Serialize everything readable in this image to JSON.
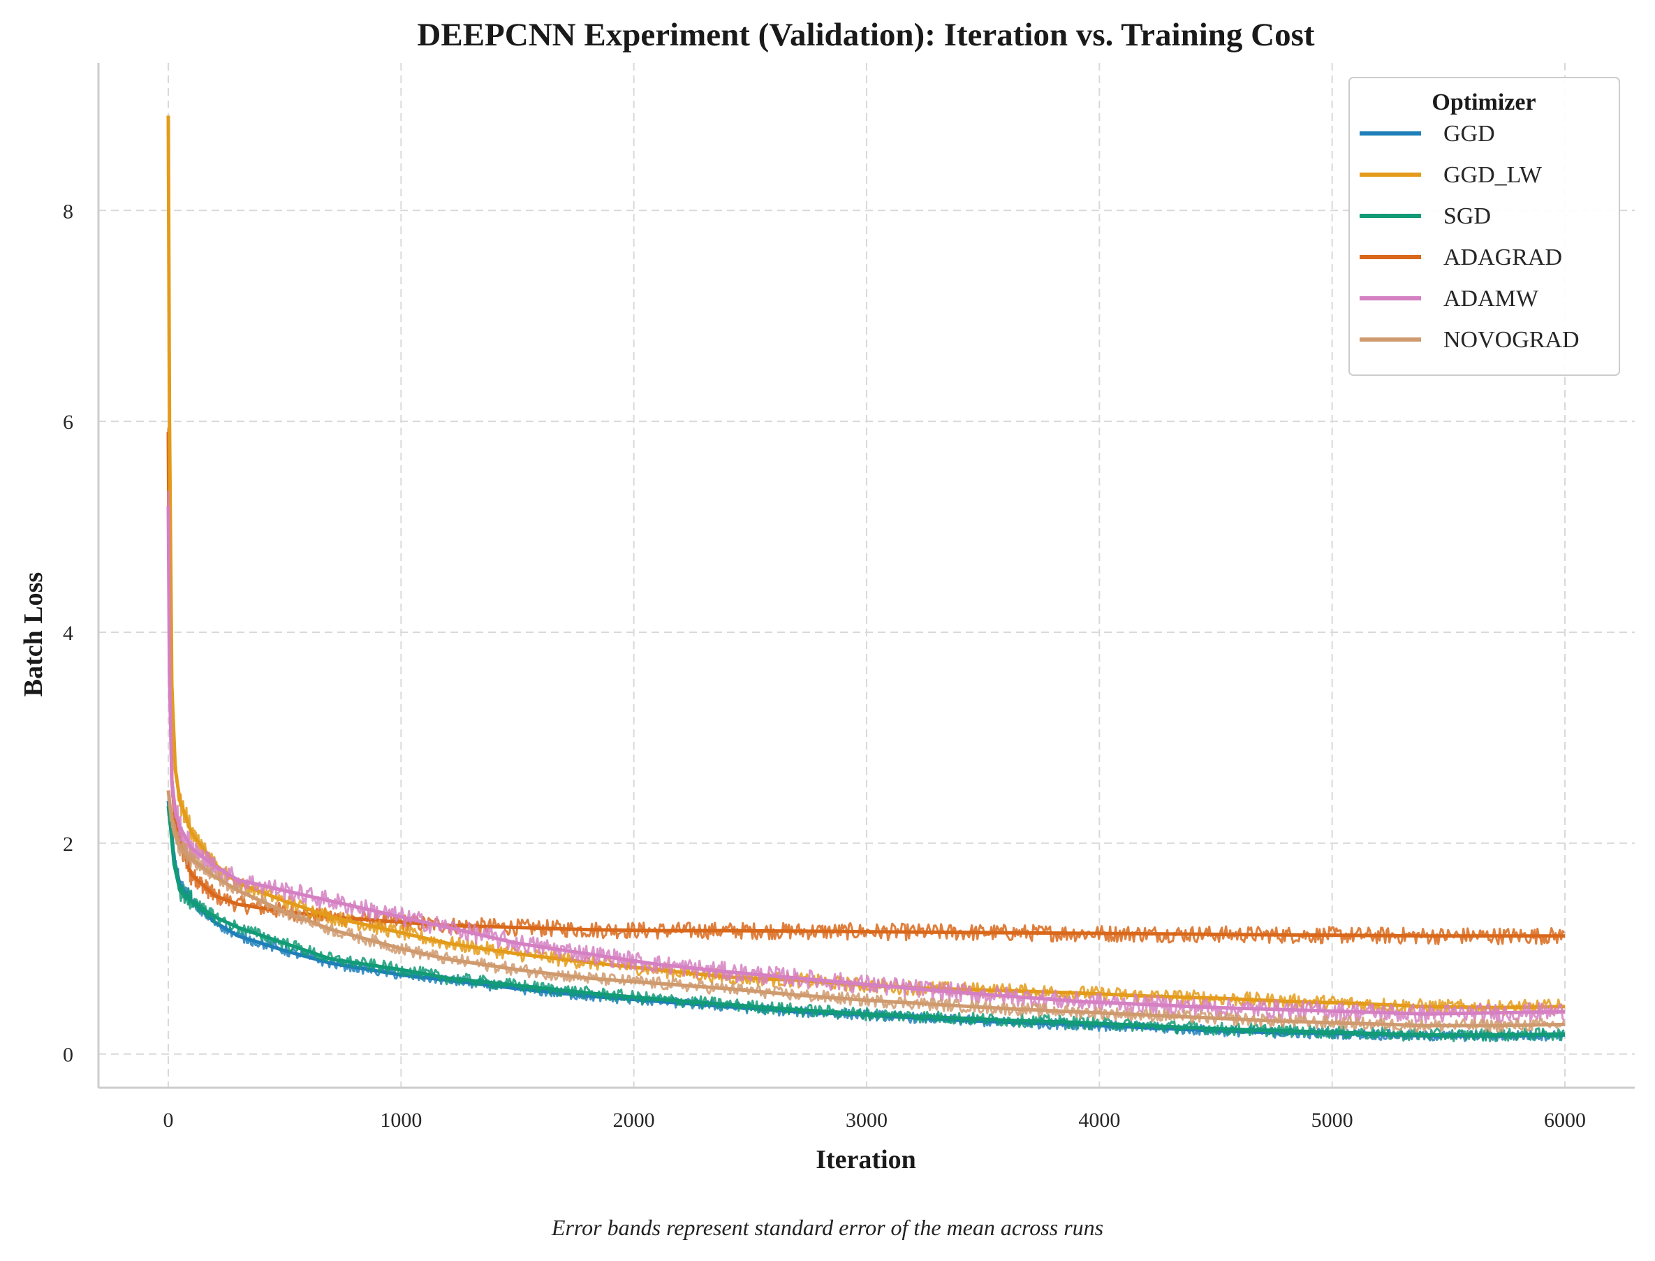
{
  "chart_data": {
    "type": "line",
    "title": "DEEPCNN Experiment (Validation): Iteration vs. Training Cost",
    "xlabel": "Iteration",
    "ylabel": "Batch Loss",
    "xlim": [
      -300,
      6300
    ],
    "ylim": [
      -0.32,
      9.4
    ],
    "xticks": [
      0,
      1000,
      2000,
      3000,
      4000,
      5000,
      6000
    ],
    "yticks": [
      0,
      2,
      4,
      6,
      8
    ],
    "grid": true,
    "legend": {
      "title": "Optimizer",
      "placement": "top-right"
    },
    "caption": "Error bands represent standard error of the mean across runs",
    "series": [
      {
        "name": "GGD",
        "color": "#1f7fb8",
        "x": [
          0,
          10,
          25,
          50,
          100,
          200,
          300,
          500,
          700,
          1000,
          1200,
          1500,
          1800,
          2100,
          2400,
          2700,
          3000,
          3300,
          3600,
          3900,
          4200,
          4500,
          4800,
          5100,
          5400,
          5700,
          6000
        ],
        "y": [
          2.4,
          2.2,
          1.85,
          1.6,
          1.45,
          1.25,
          1.12,
          0.98,
          0.86,
          0.75,
          0.7,
          0.62,
          0.55,
          0.5,
          0.45,
          0.4,
          0.37,
          0.33,
          0.3,
          0.28,
          0.25,
          0.22,
          0.2,
          0.19,
          0.17,
          0.17,
          0.18
        ],
        "noise": 0.05
      },
      {
        "name": "GGD_LW",
        "color": "#e49b1a",
        "x": [
          0,
          5,
          15,
          30,
          50,
          100,
          200,
          300,
          500,
          700,
          1000,
          1200,
          1500,
          1800,
          2100,
          2400,
          2700,
          3000,
          3300,
          3600,
          3900,
          4200,
          4500,
          4800,
          5100,
          5400,
          5700,
          6000
        ],
        "y": [
          8.9,
          6.0,
          3.5,
          2.7,
          2.4,
          2.1,
          1.8,
          1.62,
          1.45,
          1.3,
          1.15,
          1.05,
          0.95,
          0.87,
          0.8,
          0.73,
          0.7,
          0.65,
          0.62,
          0.6,
          0.58,
          0.55,
          0.53,
          0.5,
          0.48,
          0.45,
          0.44,
          0.45
        ],
        "noise": 0.07
      },
      {
        "name": "SGD",
        "color": "#129b77",
        "x": [
          0,
          10,
          25,
          50,
          100,
          200,
          300,
          500,
          700,
          1000,
          1200,
          1500,
          1800,
          2100,
          2400,
          2700,
          3000,
          3300,
          3600,
          3900,
          4200,
          4500,
          4800,
          5100,
          5400,
          5700,
          6000
        ],
        "y": [
          2.35,
          2.15,
          1.8,
          1.55,
          1.45,
          1.3,
          1.2,
          1.05,
          0.9,
          0.8,
          0.72,
          0.65,
          0.58,
          0.52,
          0.47,
          0.42,
          0.38,
          0.35,
          0.32,
          0.3,
          0.27,
          0.24,
          0.22,
          0.2,
          0.18,
          0.18,
          0.19
        ],
        "noise": 0.06
      },
      {
        "name": "ADAGRAD",
        "color": "#d9681b",
        "x": [
          0,
          5,
          15,
          30,
          50,
          100,
          200,
          300,
          500,
          700,
          1000,
          1200,
          1500,
          1800,
          2100,
          2400,
          3000,
          3600,
          4200,
          4800,
          5400,
          6000
        ],
        "y": [
          5.9,
          4.0,
          2.6,
          2.2,
          2.0,
          1.7,
          1.5,
          1.42,
          1.35,
          1.3,
          1.25,
          1.22,
          1.2,
          1.18,
          1.17,
          1.17,
          1.16,
          1.15,
          1.14,
          1.13,
          1.12,
          1.12
        ],
        "noise": 0.08
      },
      {
        "name": "ADAMW",
        "color": "#d580c2",
        "x": [
          0,
          5,
          15,
          30,
          50,
          100,
          200,
          300,
          500,
          700,
          1000,
          1200,
          1500,
          1800,
          2100,
          2400,
          2700,
          3000,
          3300,
          3600,
          3900,
          4200,
          4500,
          4800,
          5100,
          5400,
          5700,
          6000
        ],
        "y": [
          5.2,
          3.6,
          2.6,
          2.3,
          2.15,
          1.95,
          1.78,
          1.65,
          1.55,
          1.45,
          1.3,
          1.2,
          1.05,
          0.95,
          0.85,
          0.78,
          0.72,
          0.66,
          0.6,
          0.55,
          0.5,
          0.47,
          0.44,
          0.42,
          0.4,
          0.38,
          0.39,
          0.4
        ],
        "noise": 0.09
      },
      {
        "name": "NOVOGRAD",
        "color": "#cf9a6e",
        "x": [
          0,
          10,
          25,
          50,
          100,
          200,
          300,
          500,
          700,
          1000,
          1200,
          1500,
          1800,
          2100,
          2400,
          2700,
          3000,
          3300,
          3600,
          3900,
          4200,
          4500,
          4800,
          5100,
          5400,
          5700,
          6000
        ],
        "y": [
          2.5,
          2.3,
          2.1,
          1.95,
          1.85,
          1.68,
          1.55,
          1.35,
          1.18,
          1.0,
          0.9,
          0.8,
          0.72,
          0.67,
          0.62,
          0.56,
          0.51,
          0.47,
          0.43,
          0.4,
          0.37,
          0.34,
          0.31,
          0.29,
          0.27,
          0.27,
          0.28
        ],
        "noise": 0.06
      }
    ]
  }
}
